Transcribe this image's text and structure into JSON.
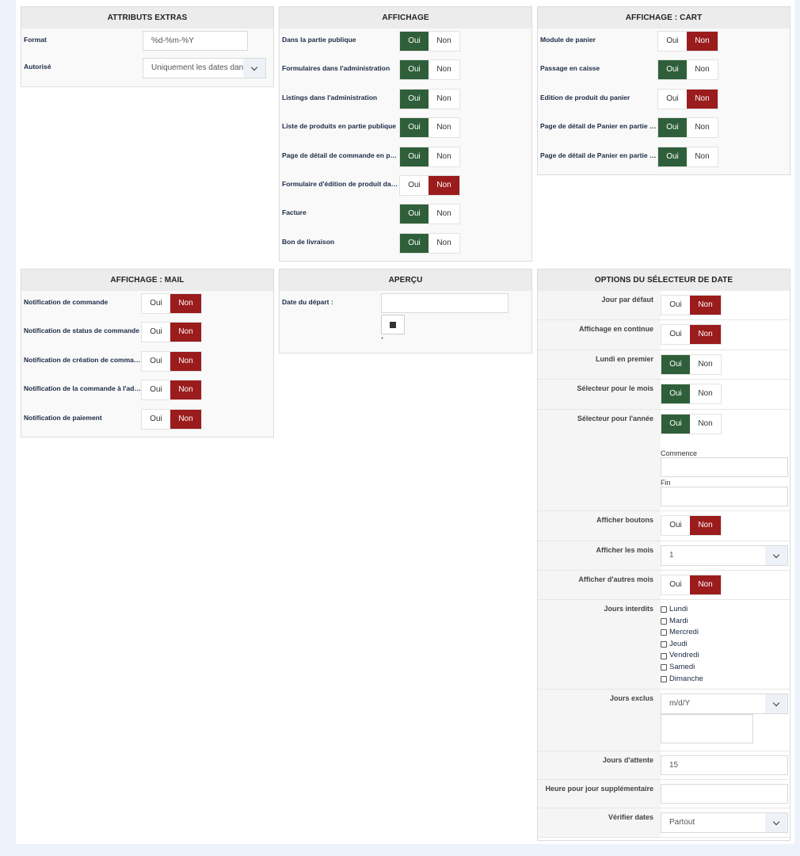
{
  "colors": {
    "oui_active": "#2f5f3a",
    "non_active": "#9b1c1c",
    "page_bg": "#eef2fb"
  },
  "toggle": {
    "oui": "Oui",
    "non": "Non"
  },
  "extras": {
    "title": "ATTRIBUTS EXTRAS",
    "format_label": "Format",
    "format_value": "%d-%m-%Y",
    "autorise_label": "Autorisé",
    "autorise_value": "Uniquement les dates dans"
  },
  "affichage": {
    "title": "AFFICHAGE",
    "rows": [
      {
        "label": "Dans la partie publique",
        "value": "Oui"
      },
      {
        "label": "Formulaires dans l'administration",
        "value": "Oui"
      },
      {
        "label": "Listings dans l'administration",
        "value": "Oui"
      },
      {
        "label": "Liste de produits en partie publique",
        "value": "Oui"
      },
      {
        "label": "Page de détail de commande en partie publique",
        "value": "Oui"
      },
      {
        "label": "Formulaire d'édition de produit dans le panier",
        "value": "Non"
      },
      {
        "label": "Facture",
        "value": "Oui"
      },
      {
        "label": "Bon de livraison",
        "value": "Oui"
      }
    ]
  },
  "cart": {
    "title": "AFFICHAGE : CART",
    "rows": [
      {
        "label": "Module de panier",
        "value": "Non"
      },
      {
        "label": "Passage en caisse",
        "value": "Oui"
      },
      {
        "label": "Edition de produit du panier",
        "value": "Non"
      },
      {
        "label": "Page de détail de Panier en partie publique",
        "value": "Oui"
      },
      {
        "label": "Page de détail de Panier en partie publique",
        "value": "Oui"
      }
    ]
  },
  "mail": {
    "title": "AFFICHAGE : MAIL",
    "rows": [
      {
        "label": "Notification de commande",
        "value": "Non"
      },
      {
        "label": "Notification de status de commande",
        "value": "Non"
      },
      {
        "label": "Notification de création de commande",
        "value": "Non"
      },
      {
        "label": "Notification de la commande à l'administrateur",
        "value": "Non"
      },
      {
        "label": "Notification de paiement",
        "value": "Non"
      }
    ]
  },
  "apercu": {
    "title": "APERÇU",
    "date_label": "Date du départ :",
    "date_value": "",
    "note": "*"
  },
  "datepicker": {
    "title": "OPTIONS DU SÉLECTEUR DE DATE",
    "jour_defaut": {
      "label": "Jour par défaut",
      "value": "Non"
    },
    "continue": {
      "label": "Affichage en continue",
      "value": "Non"
    },
    "lundi": {
      "label": "Lundi en premier",
      "value": "Oui"
    },
    "sel_mois": {
      "label": "Sélecteur pour le mois",
      "value": "Oui"
    },
    "sel_annee": {
      "label": "Sélecteur pour l'année",
      "value": "Oui",
      "commence_label": "Commence",
      "commence_value": "",
      "fin_label": "Fin",
      "fin_value": ""
    },
    "boutons": {
      "label": "Afficher boutons",
      "value": "Non"
    },
    "mois": {
      "label": "Afficher les mois",
      "value": "1"
    },
    "autres": {
      "label": "Afficher d'autres mois",
      "value": "Non"
    },
    "interdits": {
      "label": "Jours interdits",
      "days": [
        "Lundi",
        "Mardi",
        "Mercredi",
        "Jeudi",
        "Vendredi",
        "Samedi",
        "Dimanche"
      ]
    },
    "exclus": {
      "label": "Jours exclus",
      "format": "m/d/Y",
      "text": ""
    },
    "attente": {
      "label": "Jours d'attente",
      "value": "15"
    },
    "heure": {
      "label": "Heure pour jour supplémentaire",
      "value": ""
    },
    "verifier": {
      "label": "Vérifier dates",
      "value": "Partout"
    }
  }
}
